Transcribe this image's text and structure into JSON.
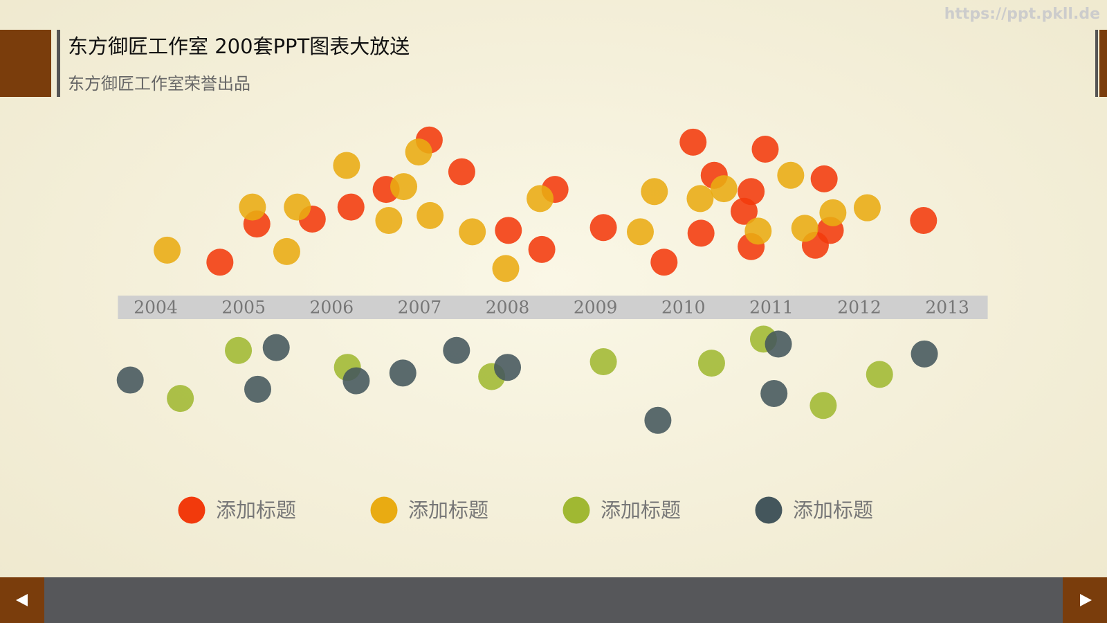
{
  "header": {
    "title": "东方御匠工作室 200套PPT图表大放送",
    "subtitle": "东方御匠工作室荣誉出品",
    "watermark": "https://ppt.pkll.de"
  },
  "chart_data": {
    "type": "scatter",
    "xlim": [
      2003.57,
      2013.46
    ],
    "xticks": [
      2004,
      2005,
      2006,
      2007,
      2008,
      2009,
      2010,
      2011,
      2012,
      2013
    ],
    "ylim": [
      -20,
      26
    ],
    "series": [
      {
        "name": "添加标题",
        "color": "#f23a0c",
        "x": [
          2007.11,
          2007.48,
          2006.62,
          2006.22,
          2005.78,
          2005.15,
          2004.73,
          2008.01,
          2008.39,
          2008.54,
          2009.09,
          2009.78,
          2010.11,
          2010.35,
          2010.77,
          2010.69,
          2010.2,
          2010.77,
          2010.93,
          2011.6,
          2011.67,
          2011.5,
          2012.73
        ],
        "y": [
          23.7,
          19.2,
          16.7,
          14.2,
          12.5,
          11.8,
          6.4,
          10.9,
          8.2,
          16.7,
          11.3,
          6.4,
          23.4,
          18.7,
          16.4,
          13.6,
          10.5,
          8.6,
          22.4,
          18.2,
          10.9,
          8.8,
          12.3
        ]
      },
      {
        "name": "添加标题",
        "color": "#e9ab12",
        "x": [
          2004.13,
          2005.1,
          2005.49,
          2005.61,
          2006.17,
          2006.65,
          2006.82,
          2006.99,
          2007.12,
          2007.6,
          2007.98,
          2008.37,
          2009.51,
          2009.67,
          2010.19,
          2010.46,
          2010.85,
          2011.22,
          2011.38,
          2011.7,
          2012.09
        ],
        "y": [
          8.1,
          14.2,
          7.9,
          14.2,
          20.1,
          12.3,
          17.1,
          22,
          13,
          10.7,
          5.5,
          15.4,
          10.7,
          16.4,
          15.4,
          16.8,
          10.8,
          18.7,
          11.2,
          13.4,
          14.1
        ]
      },
      {
        "name": "添加标题",
        "color": "#a0b832",
        "x": [
          2004.28,
          2004.94,
          2006.18,
          2007.82,
          2009.09,
          2010.32,
          2010.91,
          2011.59,
          2012.23
        ],
        "y": [
          -12.9,
          -6.1,
          -8.5,
          -9.8,
          -7.7,
          -7.9,
          -4.5,
          -13.9,
          -9.5
        ]
      },
      {
        "name": "添加标题",
        "color": "#44565c",
        "x": [
          2003.71,
          2005.37,
          2005.16,
          2006.28,
          2006.81,
          2007.42,
          2008,
          2009.71,
          2011.08,
          2011.03,
          2012.74
        ],
        "y": [
          -10.3,
          -5.7,
          -11.6,
          -10.4,
          -9.3,
          -6.1,
          -8.5,
          -16,
          -5.2,
          -12.2,
          -6.6
        ]
      }
    ]
  }
}
